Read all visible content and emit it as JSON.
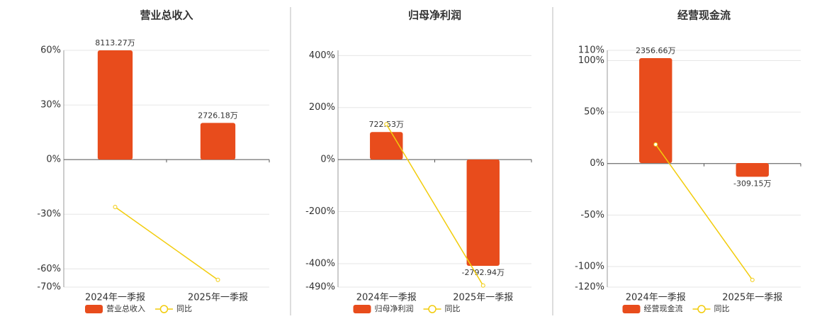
{
  "chart_data": [
    {
      "type": "bar_line",
      "title": "营业总收入",
      "categories": [
        "2024年一季报",
        "2025年一季报"
      ],
      "series": [
        {
          "name": "营业总收入",
          "type": "bar",
          "color": "#e84c1c",
          "axis": "y2",
          "values": [
            8113.27,
            2726.18
          ],
          "value_labels": [
            "8113.27万",
            "2726.18万"
          ]
        },
        {
          "name": "同比",
          "type": "line",
          "color": "#f2cc0c",
          "values": [
            -26,
            -66
          ]
        }
      ],
      "ylim": [
        -70,
        60
      ],
      "yticks": [
        {
          "value": 60,
          "label": "60%"
        },
        {
          "value": 30,
          "label": "30%"
        },
        {
          "value": 0,
          "label": "0%"
        },
        {
          "value": -30,
          "label": "-30%"
        },
        {
          "value": -60,
          "label": "-60%"
        },
        {
          "value": -70,
          "label": "-70%"
        }
      ],
      "y2lim": [
        -9465,
        8113.27
      ],
      "grid": true
    },
    {
      "type": "bar_line",
      "title": "归母净利润",
      "categories": [
        "2024年一季报",
        "2025年一季报"
      ],
      "series": [
        {
          "name": "归母净利润",
          "type": "bar",
          "color": "#e84c1c",
          "axis": "y2",
          "values": [
            722.53,
            -2792.94
          ],
          "value_labels": [
            "722.53万",
            "-2792.94万"
          ]
        },
        {
          "name": "同比",
          "type": "line",
          "color": "#f2cc0c",
          "values": [
            136,
            -484
          ]
        }
      ],
      "ylim": [
        -490,
        420
      ],
      "yticks": [
        {
          "value": 400,
          "label": "400%"
        },
        {
          "value": 200,
          "label": "200%"
        },
        {
          "value": 0,
          "label": "0%"
        },
        {
          "value": -200,
          "label": "-200%"
        },
        {
          "value": -400,
          "label": "-400%"
        },
        {
          "value": -490,
          "label": "-490%"
        }
      ],
      "y2lim": [
        -3351,
        2868
      ],
      "grid": true
    },
    {
      "type": "bar_line",
      "title": "经营现金流",
      "categories": [
        "2024年一季报",
        "2025年一季报"
      ],
      "series": [
        {
          "name": "经营现金流",
          "type": "bar",
          "color": "#e84c1c",
          "axis": "y2",
          "values": [
            2356.66,
            -309.15
          ],
          "value_labels": [
            "2356.66万",
            "-309.15万"
          ]
        },
        {
          "name": "同比",
          "type": "line",
          "color": "#f2cc0c",
          "values": [
            18.6,
            -113
          ]
        }
      ],
      "ylim": [
        -120,
        110
      ],
      "yticks": [
        {
          "value": 110,
          "label": "110%"
        },
        {
          "value": 100,
          "label": "100%"
        },
        {
          "value": 50,
          "label": "50%"
        },
        {
          "value": 0,
          "label": "0%"
        },
        {
          "value": -50,
          "label": "-50%"
        },
        {
          "value": -100,
          "label": "-100%"
        },
        {
          "value": -120,
          "label": "-120%"
        }
      ],
      "y2lim": [
        -2787,
        2532
      ],
      "grid": true
    }
  ]
}
